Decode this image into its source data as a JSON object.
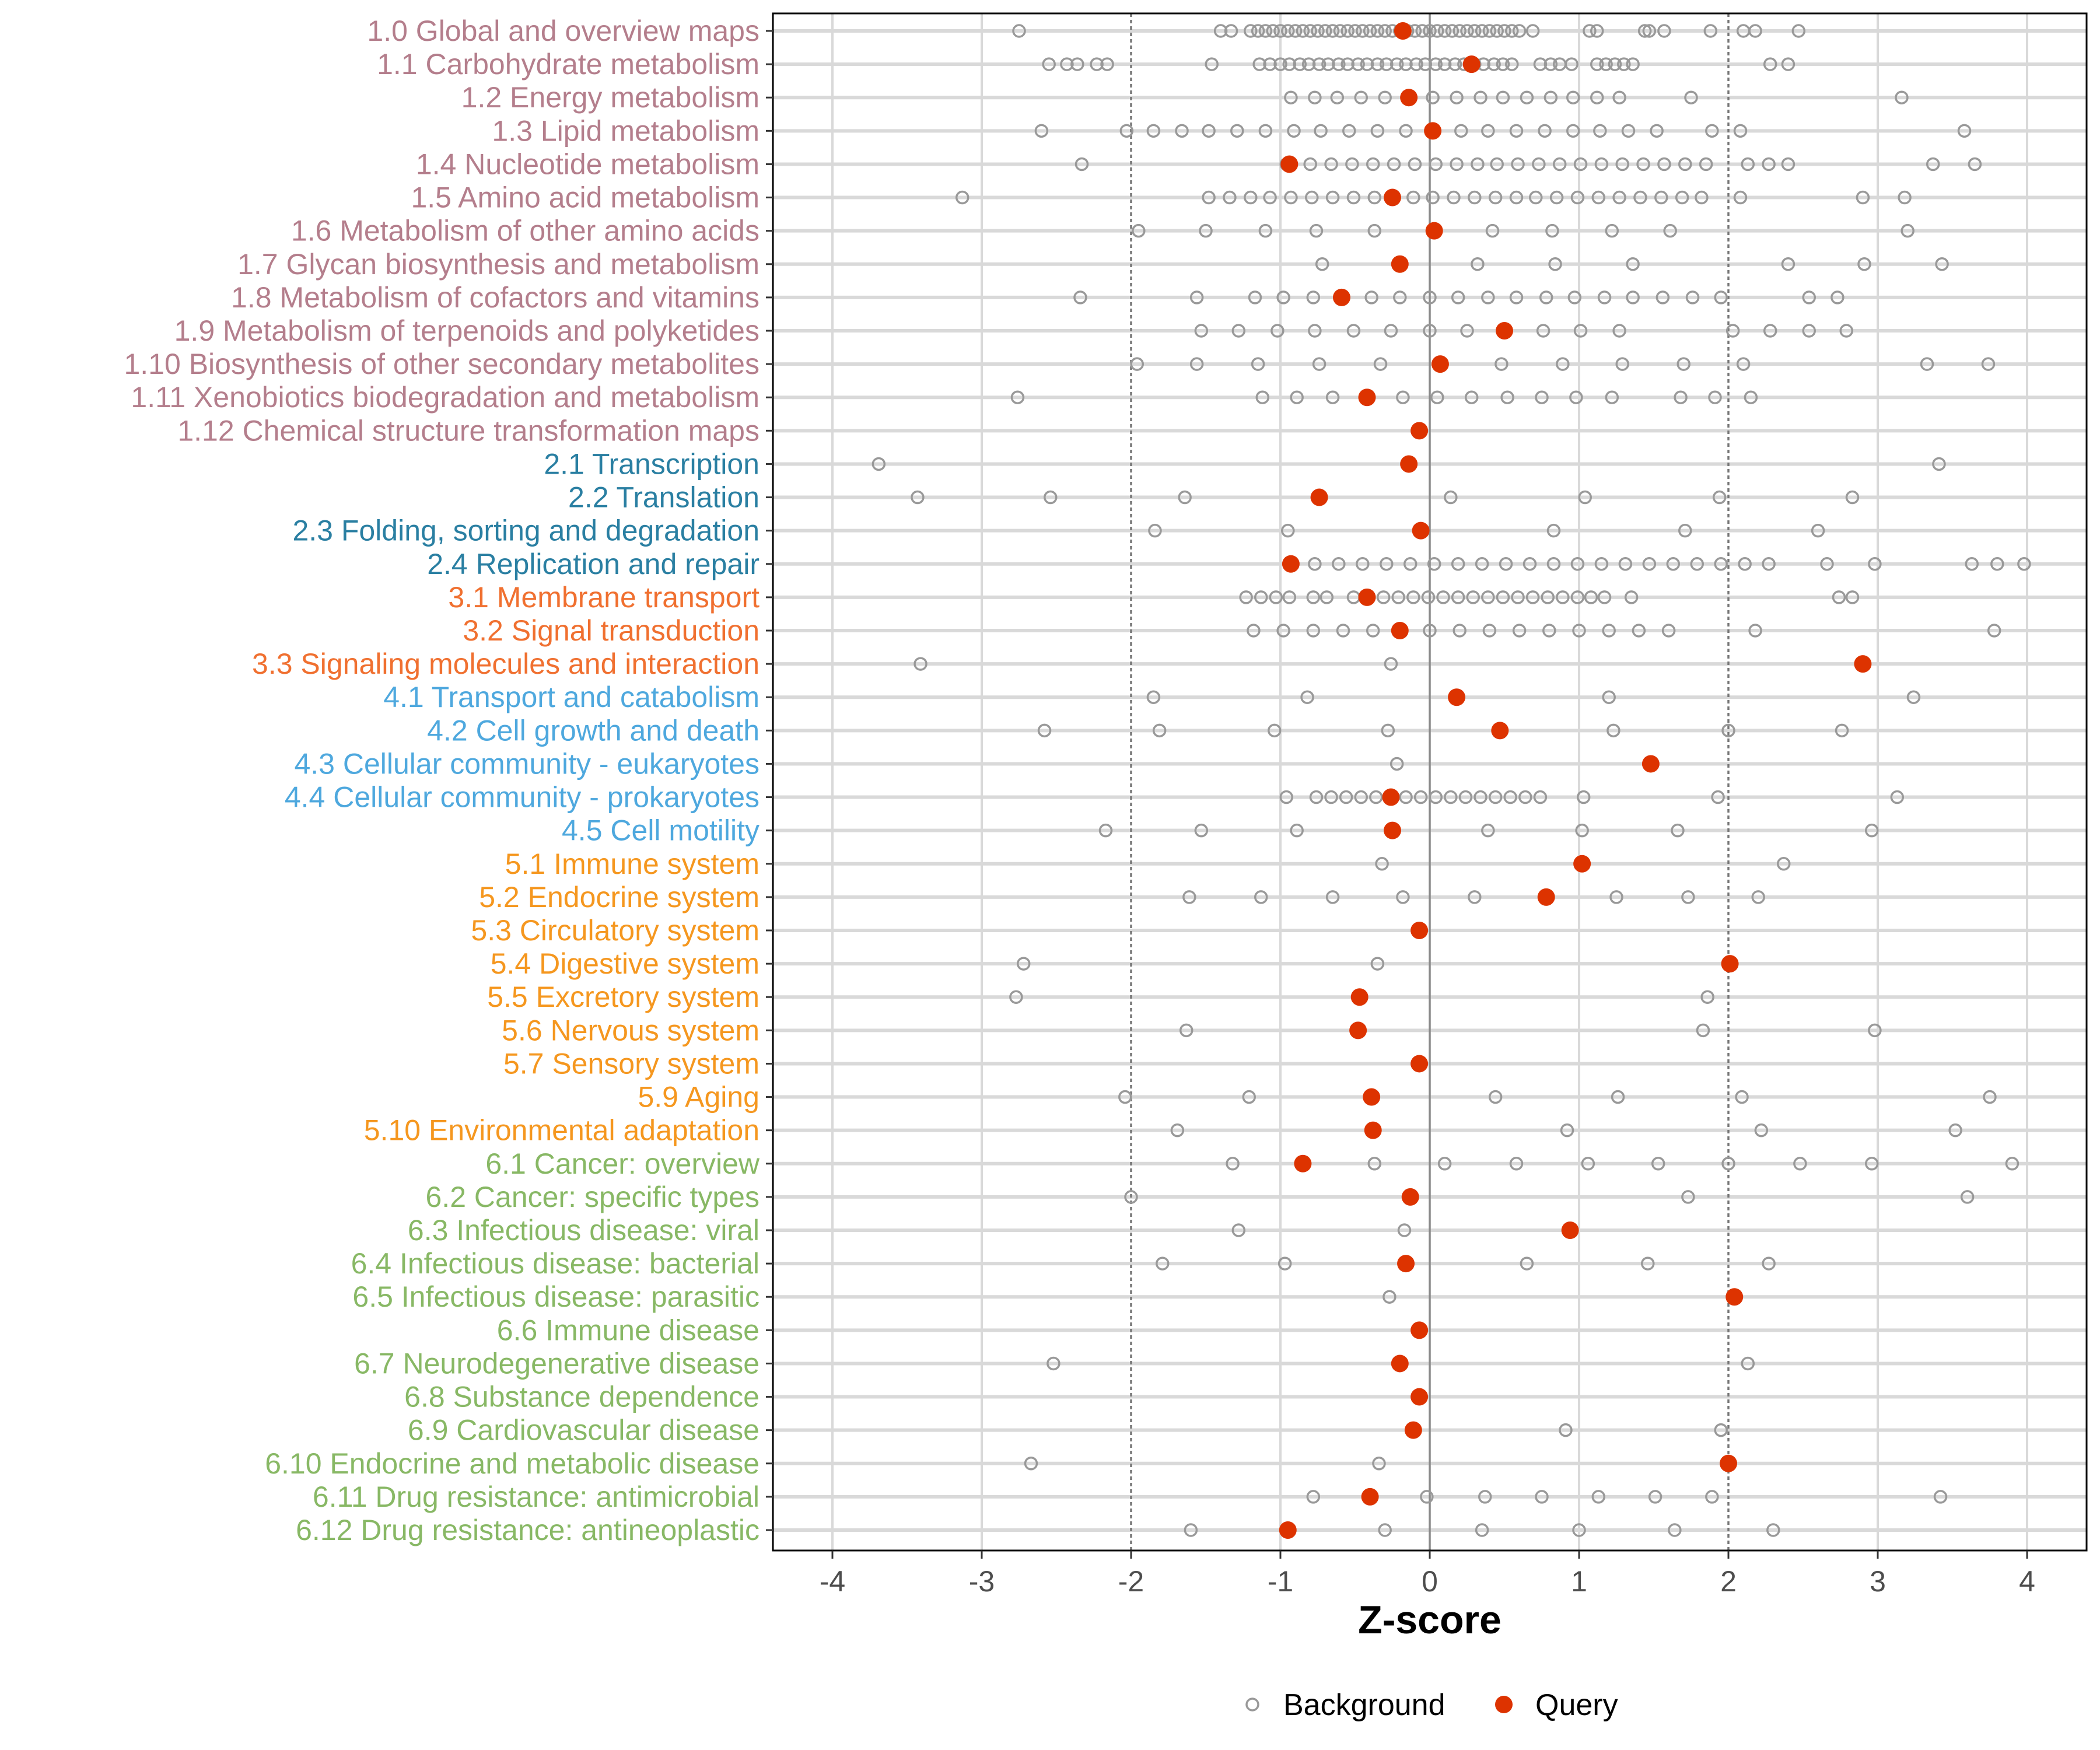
{
  "chart_data": {
    "type": "scatter",
    "title": "",
    "xlabel": "Z-score",
    "ylabel": "",
    "xlim": [
      -4.4,
      4.4
    ],
    "xticks": [
      -4,
      -3,
      -2,
      -1,
      0,
      1,
      2,
      3,
      4
    ],
    "xtick_labels": [
      "-4",
      "-3",
      "-2",
      "-1",
      "0",
      "1",
      "2",
      "3",
      "4"
    ],
    "reference_lines": {
      "solid": [
        0
      ],
      "dashed": [
        -2,
        2
      ]
    },
    "grid": true,
    "legend": {
      "placement": "bottom",
      "entries": [
        "Background",
        "Query"
      ]
    },
    "colors": {
      "query": "#dd3300",
      "background": "#999999",
      "group1": "#b47e8c",
      "group2": "#2a7fa2",
      "group3": "#f07030",
      "group4": "#4ea8de",
      "group5": "#f5971f",
      "group6": "#88b865"
    },
    "rows": [
      {
        "label": "1.0 Global and overview maps",
        "group": "group1",
        "query": -0.18,
        "background": [
          -2.75,
          -1.4,
          -1.33,
          -1.2,
          -1.15,
          -1.1,
          -1.05,
          -1.0,
          -0.95,
          -0.9,
          -0.85,
          -0.8,
          -0.75,
          -0.7,
          -0.65,
          -0.6,
          -0.55,
          -0.5,
          -0.45,
          -0.4,
          -0.35,
          -0.3,
          -0.25,
          -0.2,
          -0.15,
          -0.1,
          -0.05,
          0,
          0.05,
          0.1,
          0.15,
          0.2,
          0.25,
          0.3,
          0.35,
          0.4,
          0.45,
          0.5,
          0.55,
          0.6,
          0.69,
          1.07,
          1.12,
          1.44,
          1.47,
          1.57,
          1.88,
          2.1,
          2.18,
          2.47
        ]
      },
      {
        "label": "1.1 Carbohydrate metabolism",
        "group": "group1",
        "query": 0.28,
        "background": [
          -2.55,
          -2.43,
          -2.36,
          -2.23,
          -2.16,
          -1.46,
          -1.14,
          -1.07,
          -1.0,
          -0.94,
          -0.87,
          -0.81,
          -0.74,
          -0.68,
          -0.61,
          -0.55,
          -0.48,
          -0.42,
          -0.35,
          -0.29,
          -0.22,
          -0.16,
          -0.09,
          -0.03,
          0.04,
          0.1,
          0.17,
          0.23,
          0.3,
          0.36,
          0.43,
          0.49,
          0.55,
          0.74,
          0.81,
          0.87,
          0.95,
          1.12,
          1.18,
          1.24,
          1.3,
          1.36,
          2.28,
          2.4
        ]
      },
      {
        "label": "1.2 Energy metabolism",
        "group": "group1",
        "query": -0.14,
        "background": [
          -0.93,
          -0.77,
          -0.62,
          -0.46,
          -0.3,
          0.02,
          0.18,
          0.34,
          0.49,
          0.65,
          0.81,
          0.96,
          1.12,
          1.27,
          1.75,
          3.16
        ]
      },
      {
        "label": "1.3 Lipid metabolism",
        "group": "group1",
        "query": 0.02,
        "background": [
          -2.6,
          -2.03,
          -1.85,
          -1.66,
          -1.48,
          -1.29,
          -1.1,
          -0.91,
          -0.73,
          -0.54,
          -0.35,
          -0.16,
          0.21,
          0.39,
          0.58,
          0.77,
          0.96,
          1.14,
          1.33,
          1.52,
          1.89,
          2.08,
          3.58
        ]
      },
      {
        "label": "1.4 Nucleotide metabolism",
        "group": "group1",
        "query": -0.94,
        "background": [
          -2.33,
          -0.96,
          -0.8,
          -0.66,
          -0.52,
          -0.38,
          -0.24,
          -0.1,
          0.04,
          0.18,
          0.32,
          0.45,
          0.59,
          0.73,
          0.87,
          1.01,
          1.15,
          1.29,
          1.43,
          1.57,
          1.71,
          1.85,
          2.13,
          2.27,
          2.4,
          3.37,
          3.65
        ]
      },
      {
        "label": "1.5 Amino acid metabolism",
        "group": "group1",
        "query": -0.25,
        "background": [
          -3.13,
          -1.48,
          -1.34,
          -1.2,
          -1.07,
          -0.93,
          -0.79,
          -0.65,
          -0.51,
          -0.37,
          -0.11,
          0.02,
          0.16,
          0.3,
          0.44,
          0.58,
          0.71,
          0.85,
          0.99,
          1.13,
          1.27,
          1.41,
          1.55,
          1.69,
          1.82,
          2.08,
          2.9,
          3.18
        ]
      },
      {
        "label": "1.6 Metabolism of other amino acids",
        "group": "group1",
        "query": 0.03,
        "background": [
          -1.95,
          -1.5,
          -1.1,
          -0.76,
          -0.37,
          0.42,
          0.82,
          1.22,
          1.61,
          3.2
        ]
      },
      {
        "label": "1.7 Glycan biosynthesis and metabolism",
        "group": "group1",
        "query": -0.2,
        "background": [
          -0.72,
          0.32,
          0.84,
          1.36,
          2.4,
          2.91,
          3.43
        ]
      },
      {
        "label": "1.8 Metabolism of cofactors and vitamins",
        "group": "group1",
        "query": -0.59,
        "background": [
          -2.34,
          -1.56,
          -1.17,
          -0.98,
          -0.78,
          -0.39,
          -0.2,
          0,
          0.19,
          0.39,
          0.58,
          0.78,
          0.97,
          1.17,
          1.36,
          1.56,
          1.76,
          1.95,
          2.54,
          2.73
        ]
      },
      {
        "label": "1.9 Metabolism of terpenoids and polyketides",
        "group": "group1",
        "query": 0.5,
        "background": [
          -1.53,
          -1.28,
          -1.02,
          -0.77,
          -0.51,
          -0.26,
          0,
          0.25,
          0.76,
          1.01,
          1.27,
          2.03,
          2.28,
          2.54,
          2.79
        ]
      },
      {
        "label": "1.10 Biosynthesis of other secondary metabolites",
        "group": "group1",
        "query": 0.07,
        "background": [
          -1.96,
          -1.56,
          -1.15,
          -0.74,
          -0.33,
          0.48,
          0.89,
          1.29,
          1.7,
          2.1,
          3.33,
          3.74
        ]
      },
      {
        "label": "1.11 Xenobiotics biodegradation and metabolism",
        "group": "group1",
        "query": -0.42,
        "background": [
          -2.76,
          -1.12,
          -0.89,
          -0.65,
          -0.18,
          0.05,
          0.28,
          0.52,
          0.75,
          0.98,
          1.22,
          1.68,
          1.91,
          2.15
        ]
      },
      {
        "label": "1.12 Chemical structure transformation maps",
        "group": "group1",
        "query": -0.07,
        "background": []
      },
      {
        "label": "2.1 Transcription",
        "group": "group2",
        "query": -0.14,
        "background": [
          -3.69,
          3.41
        ]
      },
      {
        "label": "2.2 Translation",
        "group": "group2",
        "query": -0.74,
        "background": [
          -3.43,
          -2.54,
          -1.64,
          0.14,
          1.04,
          1.94,
          2.83
        ]
      },
      {
        "label": "2.3 Folding, sorting and degradation",
        "group": "group2",
        "query": -0.06,
        "background": [
          -1.84,
          -0.95,
          0.83,
          1.71,
          2.6
        ]
      },
      {
        "label": "2.4 Replication and repair",
        "group": "group2",
        "query": -0.93,
        "background": [
          -0.77,
          -0.61,
          -0.45,
          -0.29,
          -0.13,
          0.03,
          0.19,
          0.35,
          0.51,
          0.67,
          0.83,
          0.99,
          1.15,
          1.31,
          1.47,
          1.63,
          1.79,
          1.95,
          2.11,
          2.27,
          2.66,
          2.98,
          3.63,
          3.8,
          3.98
        ]
      },
      {
        "label": "3.1 Membrane transport",
        "group": "group3",
        "query": -0.42,
        "background": [
          -1.23,
          -1.13,
          -1.03,
          -0.94,
          -0.78,
          -0.69,
          -0.51,
          -0.41,
          -0.31,
          -0.21,
          -0.11,
          -0.01,
          0.09,
          0.19,
          0.29,
          0.39,
          0.49,
          0.59,
          0.69,
          0.79,
          0.89,
          0.99,
          1.08,
          1.17,
          1.35,
          2.74,
          2.83
        ]
      },
      {
        "label": "3.2 Signal transduction",
        "group": "group3",
        "query": -0.2,
        "background": [
          -1.18,
          -0.98,
          -0.78,
          -0.58,
          -0.38,
          0,
          0.2,
          0.4,
          0.6,
          0.8,
          1.0,
          1.2,
          1.4,
          1.6,
          2.18,
          3.78
        ]
      },
      {
        "label": "3.3 Signaling molecules and interaction",
        "group": "group3",
        "query": 2.9,
        "background": [
          -3.41,
          -0.26
        ]
      },
      {
        "label": "4.1 Transport and catabolism",
        "group": "group4",
        "query": 0.18,
        "background": [
          -1.85,
          -0.82,
          1.2,
          3.24
        ]
      },
      {
        "label": "4.2 Cell growth and death",
        "group": "group4",
        "query": 0.47,
        "background": [
          -2.58,
          -1.81,
          -1.04,
          -0.28,
          1.23,
          2.0,
          2.76
        ]
      },
      {
        "label": "4.3 Cellular community - eukaryotes",
        "group": "group4",
        "query": 1.48,
        "background": [
          -0.22
        ]
      },
      {
        "label": "4.4 Cellular community - prokaryotes",
        "group": "group4",
        "query": -0.26,
        "background": [
          -0.96,
          -0.76,
          -0.66,
          -0.56,
          -0.46,
          -0.36,
          -0.16,
          -0.06,
          0.04,
          0.14,
          0.24,
          0.34,
          0.44,
          0.54,
          0.64,
          0.74,
          1.03,
          1.93,
          3.13
        ]
      },
      {
        "label": "4.5 Cell motility",
        "group": "group4",
        "query": -0.25,
        "background": [
          -2.17,
          -1.53,
          -0.89,
          0.39,
          1.02,
          1.66,
          2.96
        ]
      },
      {
        "label": "5.1 Immune system",
        "group": "group5",
        "query": 1.02,
        "background": [
          -0.32,
          2.37
        ]
      },
      {
        "label": "5.2 Endocrine system",
        "group": "group5",
        "query": 0.78,
        "background": [
          -1.61,
          -1.13,
          -0.65,
          -0.18,
          0.3,
          1.25,
          1.73,
          2.2
        ]
      },
      {
        "label": "5.3 Circulatory system",
        "group": "group5",
        "query": -0.07,
        "background": []
      },
      {
        "label": "5.4 Digestive system",
        "group": "group5",
        "query": 2.01,
        "background": [
          -2.72,
          -0.35
        ]
      },
      {
        "label": "5.5 Excretory system",
        "group": "group5",
        "query": -0.47,
        "background": [
          -2.77,
          1.86
        ]
      },
      {
        "label": "5.6 Nervous system",
        "group": "group5",
        "query": -0.48,
        "background": [
          -1.63,
          1.83,
          2.98
        ]
      },
      {
        "label": "5.7 Sensory system",
        "group": "group5",
        "query": -0.07,
        "background": []
      },
      {
        "label": "5.9 Aging",
        "group": "group5",
        "query": -0.39,
        "background": [
          -2.04,
          -1.21,
          0.44,
          1.26,
          2.09,
          3.75
        ]
      },
      {
        "label": "5.10 Environmental adaptation",
        "group": "group5",
        "query": -0.38,
        "background": [
          -1.69,
          0.92,
          2.22,
          3.52
        ]
      },
      {
        "label": "6.1 Cancer: overview",
        "group": "group6",
        "query": -0.85,
        "background": [
          -1.32,
          -0.37,
          0.1,
          0.58,
          1.06,
          1.53,
          2.0,
          2.48,
          2.96,
          3.9
        ]
      },
      {
        "label": "6.2 Cancer: specific types",
        "group": "group6",
        "query": -0.13,
        "background": [
          -2.0,
          1.73,
          3.6
        ]
      },
      {
        "label": "6.3 Infectious disease: viral",
        "group": "group6",
        "query": 0.94,
        "background": [
          -1.28,
          -0.17
        ]
      },
      {
        "label": "6.4 Infectious disease: bacterial",
        "group": "group6",
        "query": -0.16,
        "background": [
          -1.79,
          -0.97,
          0.65,
          1.46,
          2.27
        ]
      },
      {
        "label": "6.5 Infectious disease: parasitic",
        "group": "group6",
        "query": 2.04,
        "background": [
          -0.27
        ]
      },
      {
        "label": "6.6 Immune disease",
        "group": "group6",
        "query": -0.07,
        "background": []
      },
      {
        "label": "6.7 Neurodegenerative disease",
        "group": "group6",
        "query": -0.2,
        "background": [
          -2.52,
          2.13
        ]
      },
      {
        "label": "6.8 Substance dependence",
        "group": "group6",
        "query": -0.07,
        "background": []
      },
      {
        "label": "6.9 Cardiovascular disease",
        "group": "group6",
        "query": -0.11,
        "background": [
          0.91,
          1.95
        ]
      },
      {
        "label": "6.10 Endocrine and metabolic disease",
        "group": "group6",
        "query": 2.0,
        "background": [
          -2.67,
          -0.34
        ]
      },
      {
        "label": "6.11 Drug resistance: antimicrobial",
        "group": "group6",
        "query": -0.4,
        "background": [
          -0.78,
          -0.02,
          0.37,
          0.75,
          1.13,
          1.51,
          1.89,
          3.42
        ]
      },
      {
        "label": "6.12 Drug resistance: antineoplastic",
        "group": "group6",
        "query": -0.95,
        "background": [
          -1.6,
          -0.3,
          0.35,
          1.0,
          1.64,
          2.3
        ]
      }
    ]
  }
}
